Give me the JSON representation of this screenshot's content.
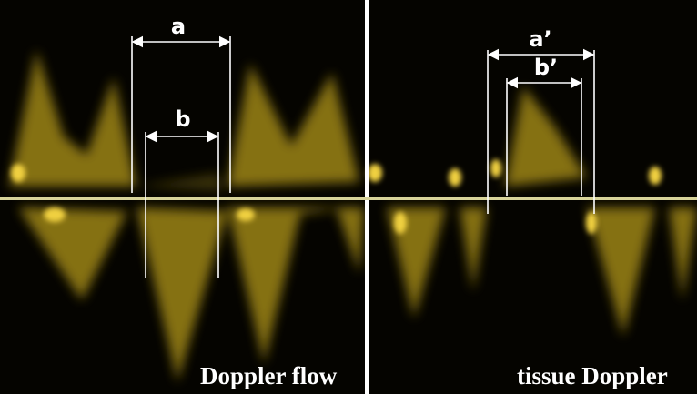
{
  "panels": [
    {
      "caption": "Doppler flow",
      "intervals": [
        {
          "label": "a"
        },
        {
          "label": "b"
        }
      ]
    },
    {
      "caption": "tissue Doppler",
      "intervals": [
        {
          "label": "a’"
        },
        {
          "label": "b’"
        }
      ]
    }
  ]
}
